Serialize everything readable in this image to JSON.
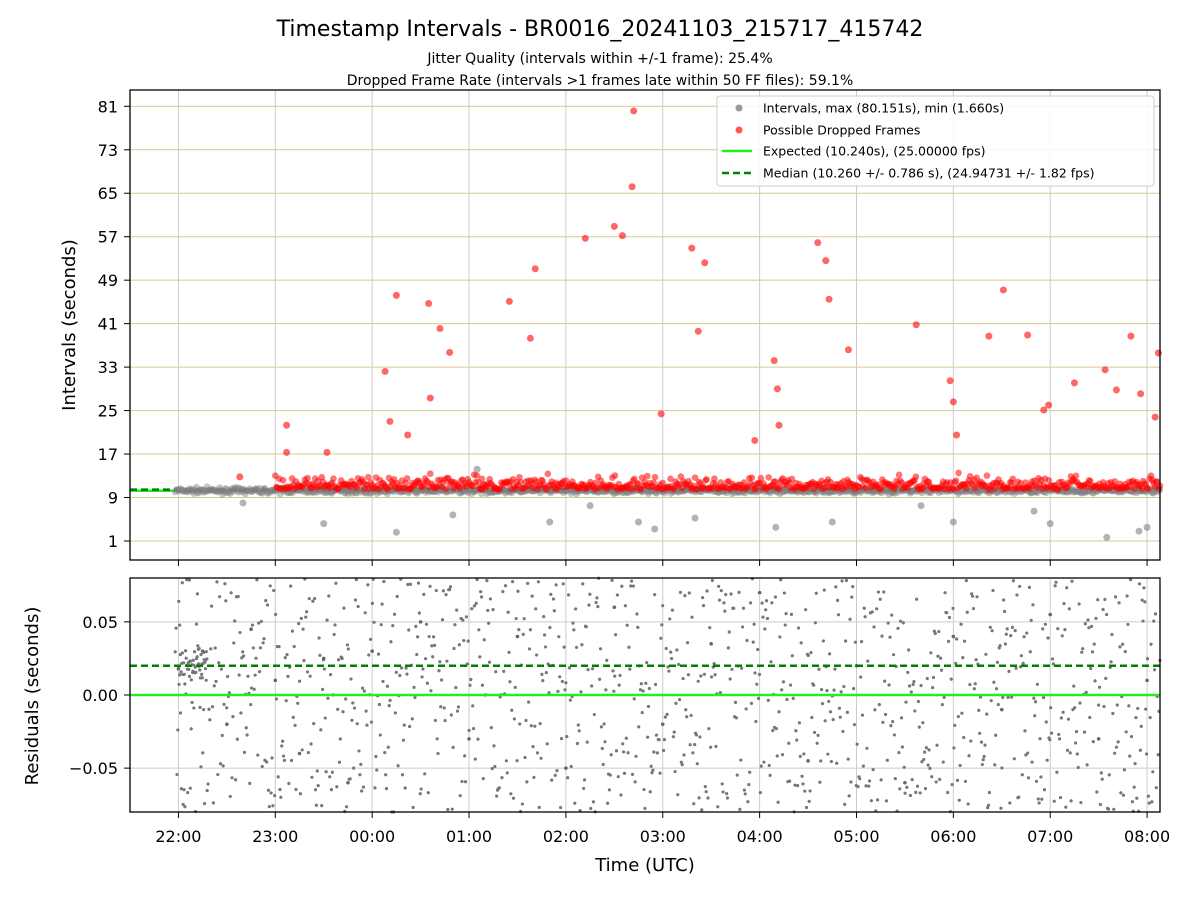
{
  "chart_data": [
    {
      "type": "scatter",
      "title": "Timestamp Intervals - BR0016_20241103_215717_415742",
      "subtitle_1": "Jitter Quality (intervals within +/-1 frame): 25.4%",
      "subtitle_2": "Dropped Frame Rate (intervals >1 frames late within 50 FF files): 59.1%",
      "xlabel": "",
      "ylabel": "Intervals (seconds)",
      "x_ticks": [
        "22:00",
        "23:00",
        "00:00",
        "01:00",
        "02:00",
        "03:00",
        "04:00",
        "05:00",
        "06:00",
        "07:00",
        "08:00"
      ],
      "xlim": [
        "21:30",
        "08:08"
      ],
      "y_ticks": [
        1,
        9,
        17,
        25,
        33,
        41,
        49,
        57,
        65,
        73,
        81
      ],
      "ylim": [
        -2.5,
        84
      ],
      "grid": true,
      "legend_position": "top-right",
      "colors": {
        "intervals": "#808080",
        "dropped": "#ff0000",
        "expected": "#22ee22",
        "median": "#008000",
        "h_grid": "#d8c890",
        "v_grid": "#cccccc"
      },
      "legend": [
        {
          "label": "Intervals, max (80.151s), min (1.660s)",
          "kind": "marker",
          "color": "#999999"
        },
        {
          "label": "Possible Dropped Frames",
          "kind": "marker",
          "color": "#ff5555"
        },
        {
          "label": "Expected (10.240s), (25.00000 fps)",
          "kind": "solid",
          "color": "#22ee22"
        },
        {
          "label": "Median (10.260 +/- 0.786 s), (24.94731 +/- 1.82 fps)",
          "kind": "dashed",
          "color": "#008000"
        }
      ],
      "reference_lines": {
        "expected": 10.24,
        "median": 10.26
      },
      "series": [
        {
          "name": "Intervals, max (80.151s), min (1.660s)",
          "x": [
            "22:40",
            "23:30",
            "00:15",
            "00:50",
            "01:05",
            "01:50",
            "02:15",
            "02:45",
            "02:55",
            "03:20",
            "04:10",
            "04:45",
            "05:40",
            "06:00",
            "06:50",
            "07:00",
            "07:35",
            "07:55",
            "08:00"
          ],
          "y": [
            8,
            4.2,
            2.6,
            5.8,
            14.2,
            4.5,
            7.5,
            4.5,
            3.2,
            5.2,
            3.5,
            4.5,
            7.5,
            4.5,
            6.5,
            4.2,
            1.66,
            2.8,
            3.5
          ]
        },
        {
          "name": "Possible Dropped Frames",
          "x": [
            "22:38",
            "23:07",
            "23:07",
            "23:32",
            "00:08",
            "00:11",
            "00:15",
            "00:22",
            "00:35",
            "00:36",
            "00:42",
            "00:48",
            "01:08",
            "01:25",
            "01:38",
            "01:41",
            "02:12",
            "02:30",
            "02:35",
            "02:41",
            "02:42",
            "02:59",
            "03:18",
            "03:22",
            "03:26",
            "03:57",
            "04:09",
            "04:11",
            "04:12",
            "04:36",
            "04:41",
            "04:43",
            "04:55",
            "05:37",
            "05:58",
            "06:00",
            "06:02",
            "06:22",
            "06:31",
            "06:46",
            "06:56",
            "06:59",
            "07:15",
            "07:34",
            "07:41",
            "07:50",
            "07:56",
            "08:05",
            "08:07"
          ],
          "y": [
            12.8,
            22.3,
            17.3,
            17.3,
            32.2,
            23,
            46.2,
            20.5,
            44.7,
            27.3,
            40.1,
            35.7,
            10.5,
            45.1,
            38.3,
            51.1,
            56.7,
            58.9,
            57.2,
            66.2,
            80.151,
            24.4,
            54.9,
            39.6,
            52.2,
            19.5,
            34.2,
            29,
            22.3,
            55.9,
            52.6,
            45.5,
            36.2,
            40.8,
            30.5,
            26.6,
            20.5,
            38.7,
            47.2,
            38.9,
            25.1,
            26,
            30.1,
            32.5,
            28.8,
            38.7,
            28.1,
            23.8,
            35.6
          ]
        }
      ]
    },
    {
      "type": "scatter",
      "title": "",
      "xlabel": "Time (UTC)",
      "ylabel": "Residuals (seconds)",
      "x_ticks": [
        "22:00",
        "23:00",
        "00:00",
        "01:00",
        "02:00",
        "03:00",
        "04:00",
        "05:00",
        "06:00",
        "07:00",
        "08:00"
      ],
      "xlim": [
        "21:30",
        "08:08"
      ],
      "y_ticks": [
        "0.05",
        "0.00",
        "−0.05"
      ],
      "y_tick_values": [
        0.05,
        0.0,
        -0.05
      ],
      "ylim": [
        -0.08,
        0.08
      ],
      "grid": true,
      "reference_lines": {
        "expected": 0.0,
        "median": 0.02
      },
      "series": [
        {
          "name": "",
          "x": [
            "22:00",
            "22:15",
            "22:30",
            "22:45",
            "23:00",
            "23:15",
            "23:30",
            "23:45",
            "00:00",
            "00:30",
            "01:00",
            "01:30",
            "02:00",
            "02:30",
            "03:00",
            "03:30",
            "04:00",
            "04:30",
            "05:00",
            "05:30",
            "06:00",
            "06:30",
            "07:00",
            "07:30",
            "08:00"
          ],
          "y": [
            0.018,
            0.03,
            -0.02,
            0.045,
            0.01,
            -0.04,
            0.025,
            -0.06,
            0.03,
            0.05,
            -0.03,
            0.04,
            -0.05,
            0.06,
            -0.02,
            0.035,
            0.07,
            -0.045,
            0.02,
            -0.06,
            0.04,
            -0.01,
            0.055,
            -0.03,
            0.01
          ]
        }
      ]
    }
  ]
}
